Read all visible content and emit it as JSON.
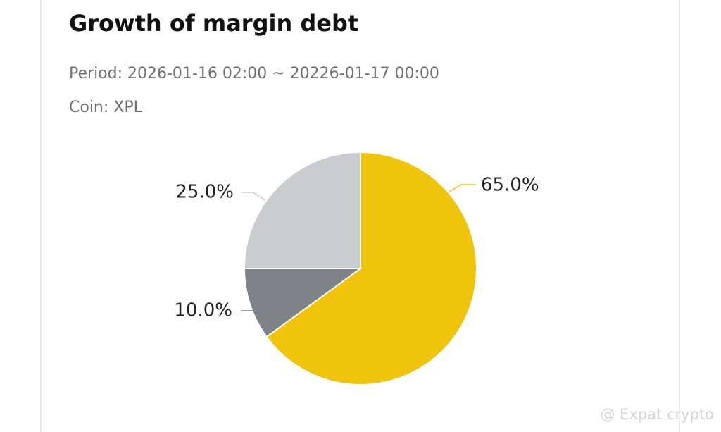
{
  "chart_data": {
    "type": "pie",
    "title": "Growth of margin debt",
    "subtitle": [
      "Period: 2026-01-16 02:00 ~ 20226-01-17 00:00",
      "Coin: XPL"
    ],
    "categories": [
      null,
      null,
      null
    ],
    "values": [
      65,
      10,
      25
    ],
    "value_labels": [
      "65.0%",
      "10.0%",
      "25.0%"
    ],
    "colors": [
      "#f0c40c",
      "#7e8389",
      "#c9ccd1"
    ],
    "watermark": "@ Expat crypto"
  }
}
